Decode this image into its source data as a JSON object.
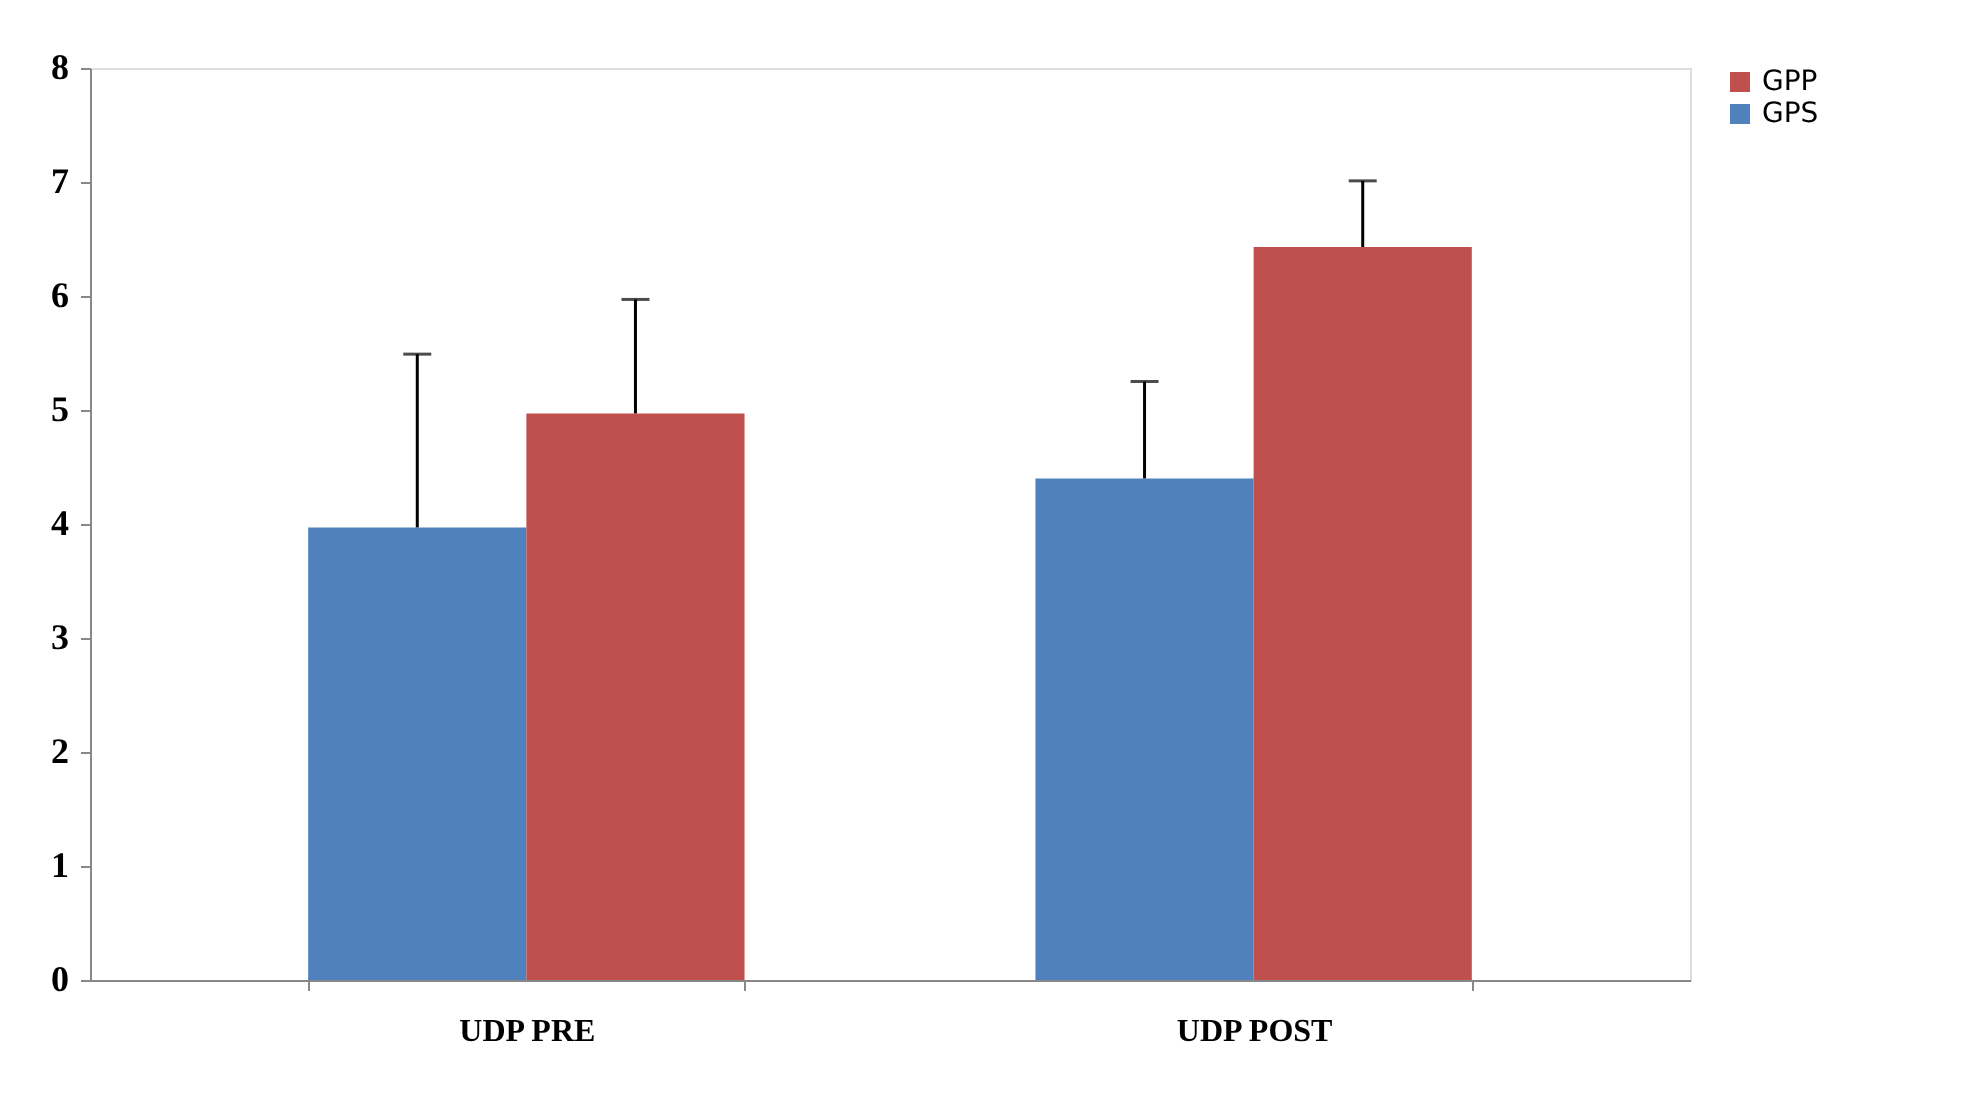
{
  "chart_data": {
    "type": "bar",
    "categories": [
      "UDP PRE",
      "UDP POST"
    ],
    "series": [
      {
        "name": "GPS",
        "color": "#4f81bd",
        "values": [
          3.97,
          4.4
        ],
        "errors": [
          [
            3.97,
            5.49
          ],
          [
            4.4,
            5.25
          ]
        ]
      },
      {
        "name": "GPP",
        "color": "#c0504d",
        "values": [
          4.97,
          6.43
        ],
        "errors": [
          [
            4.97,
            5.97
          ],
          [
            6.43,
            7.01
          ]
        ]
      }
    ],
    "ylim": [
      0,
      8
    ],
    "yticks": [
      0,
      1,
      2,
      3,
      4,
      5,
      6,
      7,
      8
    ],
    "grid": false,
    "legend": "right"
  }
}
